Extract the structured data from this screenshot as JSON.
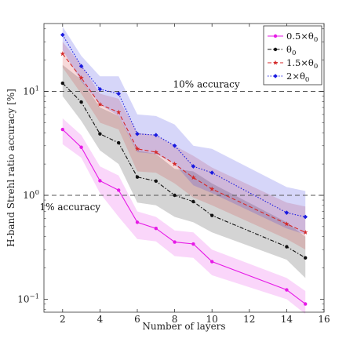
{
  "chart_data": {
    "type": "line",
    "title": "",
    "xlabel": "Number of layers",
    "ylabel": "H-band Strehl ratio accuracy [%]",
    "xlim": [
      1,
      16
    ],
    "ylim": [
      0.075,
      45
    ],
    "yscale": "log",
    "xticks": [
      2,
      4,
      6,
      8,
      10,
      12,
      14,
      16
    ],
    "xtick_labels": [
      "2",
      "4",
      "6",
      "8",
      "10",
      "12",
      "14",
      "16"
    ],
    "yticks": [
      0.1,
      1,
      10
    ],
    "ytick_labels": [
      "10",
      "10",
      "10"
    ],
    "ytick_exponents": [
      "−1",
      "0",
      "1"
    ],
    "grid": false,
    "legend_position": "top-right",
    "x": [
      2,
      3,
      4,
      5,
      6,
      7,
      8,
      9,
      10,
      14,
      15
    ],
    "reference_lines": [
      {
        "y": 10,
        "label": "10% accuracy",
        "style": "dashed"
      },
      {
        "y": 1,
        "label": "1% accuracy",
        "style": "dashed"
      }
    ],
    "series": [
      {
        "name": "0.5×θ",
        "name_sub": "0",
        "color": "#e619e6",
        "line_style": "solid",
        "marker": "dot",
        "values": [
          4.3,
          2.9,
          1.38,
          1.12,
          0.55,
          0.48,
          0.355,
          0.34,
          0.23,
          0.123,
          0.09
        ],
        "upper": [
          5.5,
          3.8,
          1.9,
          1.55,
          0.7,
          0.62,
          0.46,
          0.44,
          0.3,
          0.16,
          0.12
        ],
        "lower": [
          3.1,
          2.3,
          1.05,
          0.62,
          0.38,
          0.36,
          0.26,
          0.25,
          0.17,
          0.1,
          0.072
        ]
      },
      {
        "name": "θ",
        "name_sub": "0",
        "color": "#111111",
        "line_style": "dashdot",
        "marker": "dot",
        "values": [
          12,
          7.9,
          3.9,
          3.2,
          1.5,
          1.37,
          1.0,
          0.87,
          0.64,
          0.32,
          0.25
        ],
        "upper": [
          18,
          13,
          7,
          5.8,
          2.7,
          2.5,
          1.8,
          1.7,
          1.3,
          0.55,
          0.4
        ],
        "lower": [
          9.0,
          5.2,
          2.7,
          2.0,
          0.85,
          0.8,
          0.62,
          0.55,
          0.44,
          0.24,
          0.16
        ]
      },
      {
        "name": "1.5×θ",
        "name_sub": "0",
        "color": "#d42a2a",
        "line_style": "dashed",
        "marker": "star",
        "values": [
          23,
          13.5,
          7.5,
          6.3,
          2.8,
          2.6,
          2.0,
          1.48,
          1.15,
          0.53,
          0.44
        ],
        "upper": [
          30,
          18,
          9.5,
          8.5,
          4.0,
          3.8,
          3.0,
          2.4,
          1.85,
          0.85,
          0.78
        ],
        "lower": [
          17,
          9.5,
          5.0,
          4.3,
          1.7,
          1.65,
          1.3,
          0.95,
          0.8,
          0.38,
          0.3
        ]
      },
      {
        "name": "2×θ",
        "name_sub": "0",
        "color": "#1a1ae0",
        "line_style": "dotted",
        "marker": "diamond",
        "values": [
          35,
          17.5,
          10.5,
          9.5,
          3.9,
          3.8,
          3.0,
          1.9,
          1.65,
          0.68,
          0.62
        ],
        "upper": [
          42,
          22,
          14,
          14,
          6.0,
          5.8,
          4.8,
          3.0,
          2.8,
          1.2,
          1.1
        ],
        "lower": [
          25,
          12.5,
          7.5,
          5.8,
          2.6,
          2.5,
          2.0,
          1.25,
          1.05,
          0.48,
          0.42
        ]
      }
    ]
  }
}
